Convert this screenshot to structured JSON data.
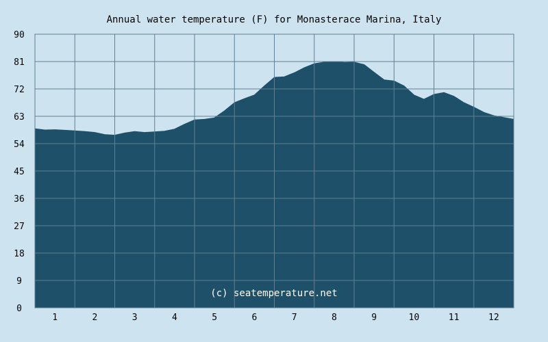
{
  "chart_data": {
    "type": "area",
    "title": "Annual water temperature (F) for Monasterace Marina, Italy",
    "watermark": "(c) seatemperature.net",
    "xlabel": "",
    "ylabel": "",
    "ylim": [
      0,
      90
    ],
    "xlim": [
      0.5,
      12.5
    ],
    "y_ticks": [
      "0",
      "9",
      "18",
      "27",
      "36",
      "45",
      "54",
      "63",
      "72",
      "81",
      "90"
    ],
    "x_ticks": [
      "1",
      "2",
      "3",
      "4",
      "5",
      "6",
      "7",
      "8",
      "9",
      "10",
      "11",
      "12"
    ],
    "grid": true,
    "colors": {
      "background": "#cde3ef",
      "area": "#1e5069",
      "grid": "#5f7f92"
    },
    "series": [
      {
        "x": [
          0.5,
          0.75,
          1.0,
          1.25,
          1.5,
          1.75,
          2.0,
          2.25,
          2.5,
          2.75,
          3.0,
          3.25,
          3.5,
          3.75,
          4.0,
          4.25,
          4.5,
          4.75,
          5.0,
          5.25,
          5.5,
          5.75,
          6.0,
          6.25,
          6.5,
          6.75,
          7.0,
          7.25,
          7.5,
          7.75,
          8.0,
          8.25,
          8.5,
          8.75,
          9.0,
          9.25,
          9.5,
          9.75,
          10.0,
          10.25,
          10.5,
          10.75,
          11.0,
          11.25,
          11.5,
          11.75,
          12.0,
          12.25,
          12.5
        ],
        "values": [
          58.9,
          58.5,
          58.6,
          58.4,
          58.2,
          58.0,
          57.7,
          57.0,
          56.8,
          57.5,
          58.0,
          57.7,
          57.9,
          58.1,
          58.8,
          60.4,
          61.8,
          62.0,
          62.5,
          64.8,
          67.5,
          68.8,
          70.0,
          73.0,
          75.8,
          76.0,
          77.3,
          79.0,
          80.3,
          80.8,
          81.0,
          80.7,
          80.8,
          80.0,
          77.5,
          75.0,
          74.6,
          73.0,
          70.0,
          68.6,
          70.2,
          70.8,
          69.6,
          67.5,
          66.0,
          64.3,
          63.2,
          62.6,
          62.0
        ]
      }
    ]
  }
}
